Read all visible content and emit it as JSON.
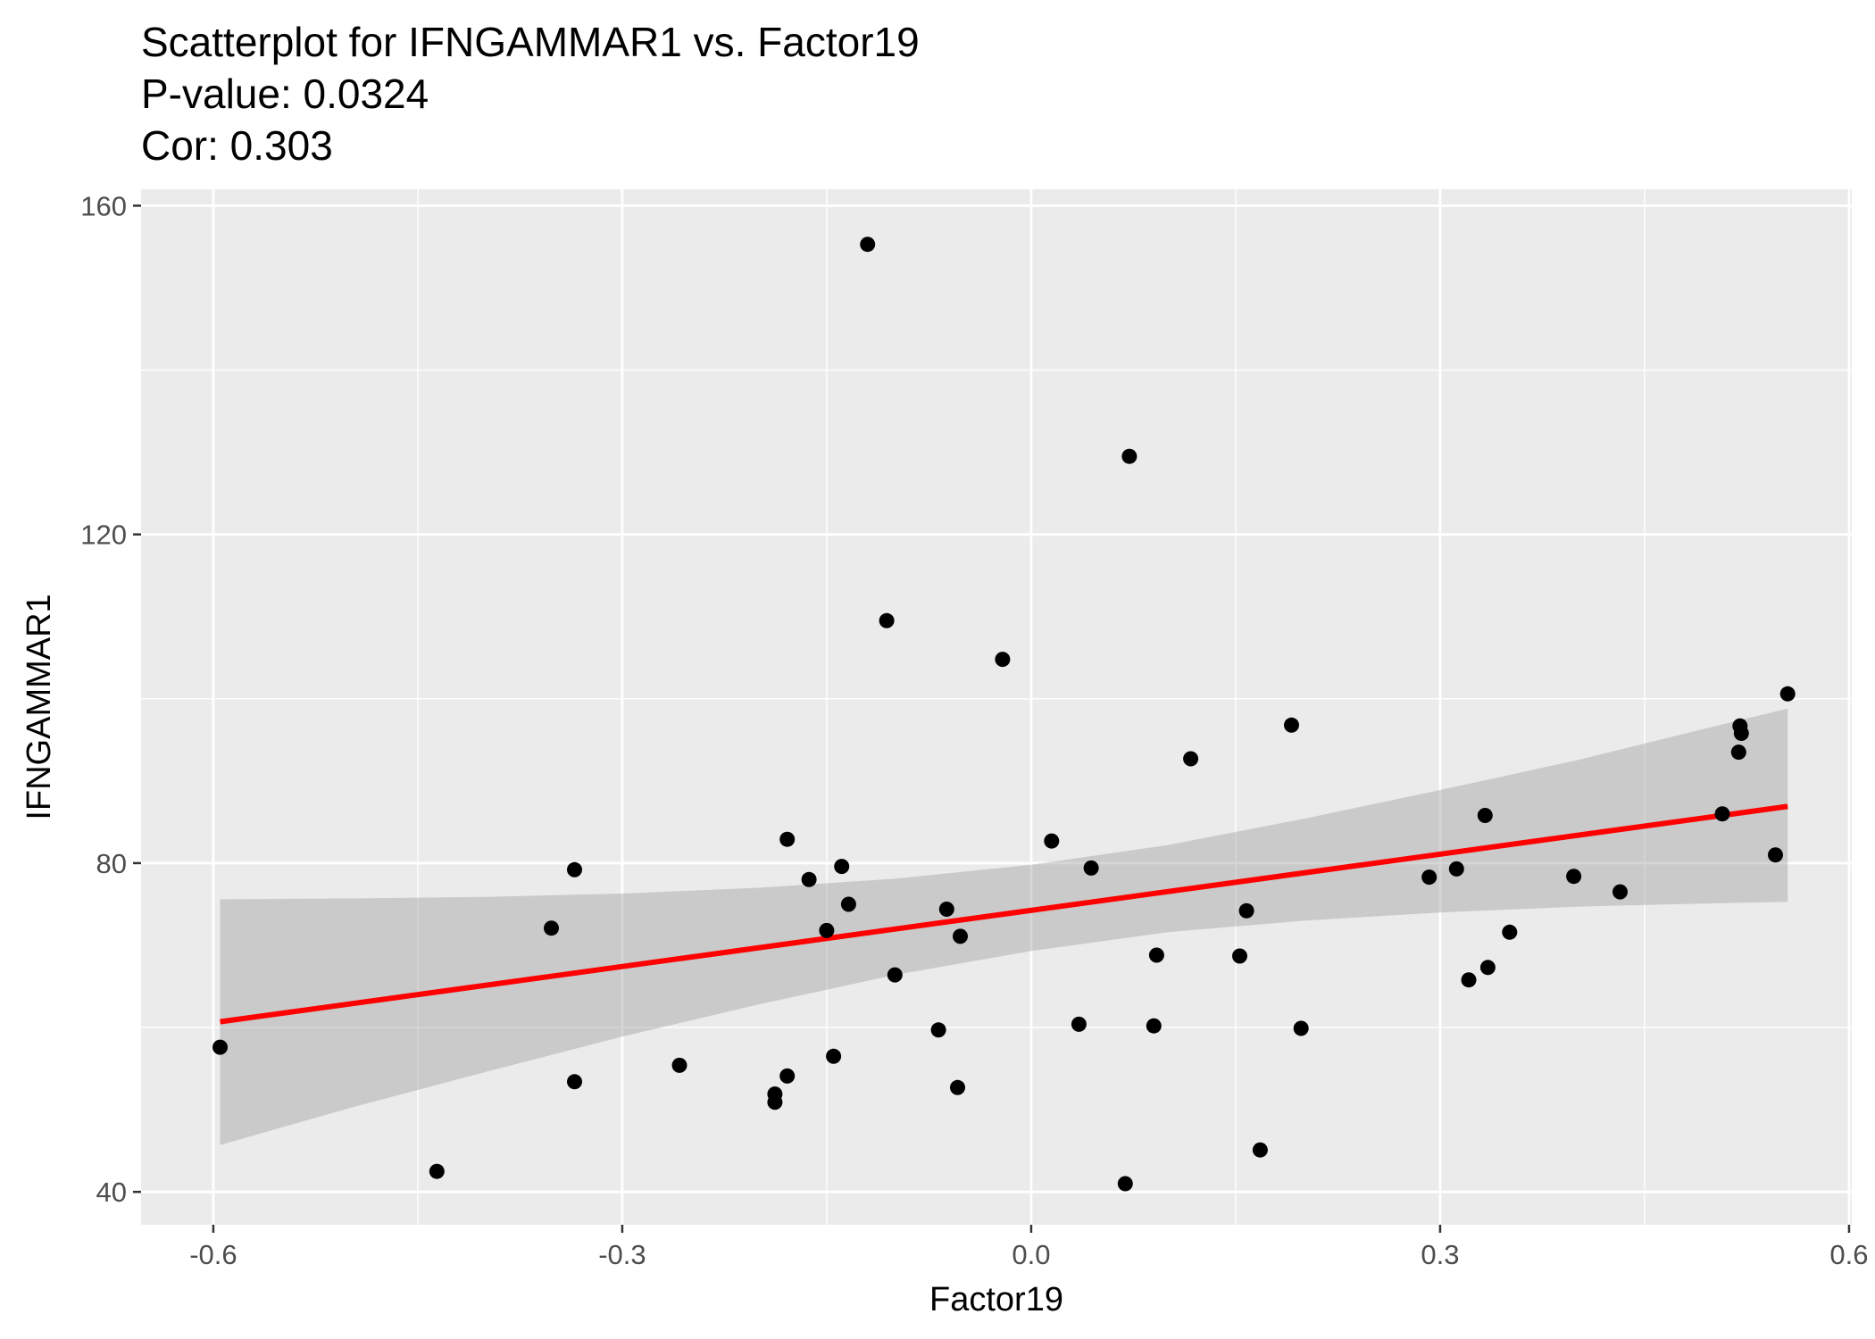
{
  "chart_data": {
    "type": "scatter",
    "title": "Scatterplot for IFNGAMMAR1 vs. Factor19",
    "subtitle_lines": [
      "P-value: 0.0324",
      "Cor: 0.303"
    ],
    "xlabel": "Factor19",
    "ylabel": "IFNGAMMAR1",
    "xlim": [
      -0.653,
      0.602
    ],
    "ylim": [
      36,
      162
    ],
    "x_ticks": [
      -0.6,
      -0.3,
      0.0,
      0.3,
      0.6
    ],
    "x_tick_labels": [
      "-0.6",
      "-0.3",
      "0.0",
      "0.3",
      "0.6"
    ],
    "y_ticks": [
      40,
      80,
      120,
      160
    ],
    "y_tick_labels": [
      "40",
      "80",
      "120",
      "160"
    ],
    "grid": true,
    "fit_line": {
      "method": "linear regression",
      "color": "#ff0000",
      "x": [
        -0.595,
        0.555
      ],
      "y": [
        60.7,
        86.9
      ],
      "confidence_band": {
        "x": [
          -0.595,
          -0.5,
          -0.4,
          -0.3,
          -0.2,
          -0.1,
          0.0,
          0.1,
          0.2,
          0.3,
          0.4,
          0.5,
          0.555
        ],
        "lower": [
          45.7,
          50.2,
          54.6,
          58.9,
          62.8,
          66.4,
          69.3,
          71.6,
          73.0,
          74.0,
          74.7,
          75.1,
          75.3
        ],
        "upper": [
          75.6,
          75.7,
          75.9,
          76.3,
          77.0,
          78.1,
          79.8,
          82.2,
          85.4,
          88.9,
          92.5,
          96.6,
          98.8
        ]
      }
    },
    "points": [
      {
        "x": -0.595,
        "y": 57.6
      },
      {
        "x": -0.436,
        "y": 42.5
      },
      {
        "x": -0.352,
        "y": 72.1
      },
      {
        "x": -0.335,
        "y": 79.2
      },
      {
        "x": -0.335,
        "y": 53.4
      },
      {
        "x": -0.258,
        "y": 55.4
      },
      {
        "x": -0.188,
        "y": 51.9
      },
      {
        "x": -0.188,
        "y": 50.9
      },
      {
        "x": -0.179,
        "y": 82.9
      },
      {
        "x": -0.179,
        "y": 54.1
      },
      {
        "x": -0.163,
        "y": 78.0
      },
      {
        "x": -0.15,
        "y": 71.8
      },
      {
        "x": -0.145,
        "y": 56.5
      },
      {
        "x": -0.139,
        "y": 79.6
      },
      {
        "x": -0.134,
        "y": 75.0
      },
      {
        "x": -0.12,
        "y": 155.3
      },
      {
        "x": -0.106,
        "y": 109.5
      },
      {
        "x": -0.1,
        "y": 66.4
      },
      {
        "x": -0.068,
        "y": 59.7
      },
      {
        "x": -0.062,
        "y": 74.4
      },
      {
        "x": -0.054,
        "y": 52.7
      },
      {
        "x": -0.052,
        "y": 71.1
      },
      {
        "x": -0.021,
        "y": 104.8
      },
      {
        "x": 0.015,
        "y": 82.7
      },
      {
        "x": 0.035,
        "y": 60.4
      },
      {
        "x": 0.044,
        "y": 79.4
      },
      {
        "x": 0.069,
        "y": 41.0
      },
      {
        "x": 0.072,
        "y": 129.5
      },
      {
        "x": 0.09,
        "y": 60.2
      },
      {
        "x": 0.092,
        "y": 68.8
      },
      {
        "x": 0.117,
        "y": 92.7
      },
      {
        "x": 0.153,
        "y": 68.7
      },
      {
        "x": 0.158,
        "y": 74.2
      },
      {
        "x": 0.168,
        "y": 45.1
      },
      {
        "x": 0.191,
        "y": 96.8
      },
      {
        "x": 0.198,
        "y": 59.9
      },
      {
        "x": 0.292,
        "y": 78.3
      },
      {
        "x": 0.312,
        "y": 79.3
      },
      {
        "x": 0.321,
        "y": 65.8
      },
      {
        "x": 0.333,
        "y": 85.8
      },
      {
        "x": 0.335,
        "y": 67.3
      },
      {
        "x": 0.351,
        "y": 71.6
      },
      {
        "x": 0.398,
        "y": 78.4
      },
      {
        "x": 0.432,
        "y": 76.5
      },
      {
        "x": 0.507,
        "y": 86.0
      },
      {
        "x": 0.519,
        "y": 93.5
      },
      {
        "x": 0.52,
        "y": 96.7
      },
      {
        "x": 0.521,
        "y": 95.8
      },
      {
        "x": 0.546,
        "y": 81.0
      },
      {
        "x": 0.555,
        "y": 100.6
      }
    ]
  }
}
